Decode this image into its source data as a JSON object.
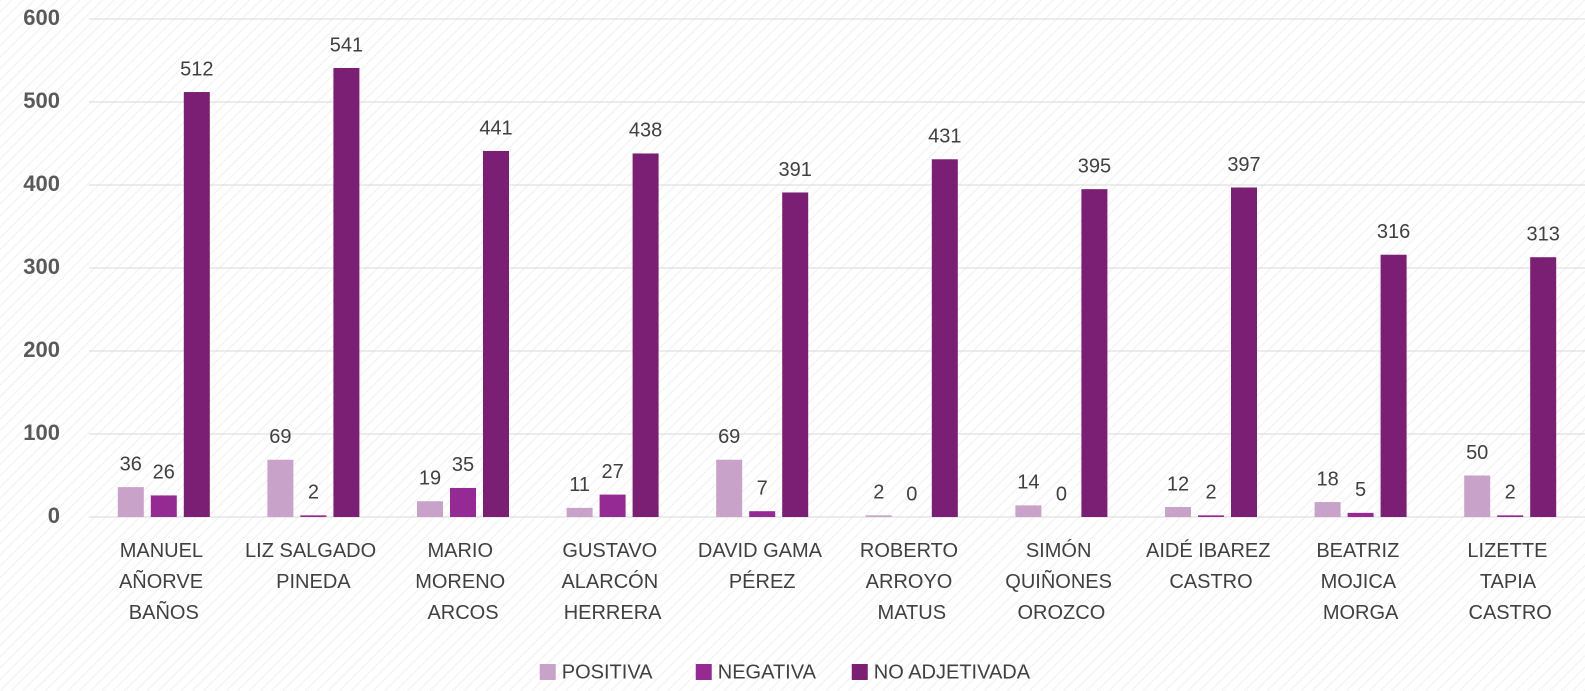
{
  "chart_data": {
    "type": "bar",
    "categories": [
      "MANUEL AÑORVE BAÑOS",
      "LIZ SALGADO PINEDA",
      "MARIO MORENO ARCOS",
      "GUSTAVO ALARCÓN HERRERA",
      "DAVID GAMA PÉREZ",
      "ROBERTO ARROYO MATUS",
      "SIMÓN QUIÑONES OROZCO",
      "AIDÉ IBAREZ CASTRO",
      "BEATRIZ MOJICA MORGA",
      "LIZETTE TAPIA CASTRO"
    ],
    "series": [
      {
        "name": "POSITIVA",
        "color": "#c8a2c8",
        "values": [
          36,
          69,
          19,
          11,
          69,
          2,
          14,
          12,
          18,
          50
        ]
      },
      {
        "name": "NEGATIVA",
        "color": "#952a95",
        "values": [
          26,
          2,
          35,
          27,
          7,
          0,
          0,
          2,
          5,
          2
        ]
      },
      {
        "name": "NO ADJETIVADA",
        "color": "#7a1f73",
        "values": [
          512,
          541,
          441,
          438,
          391,
          431,
          395,
          397,
          316,
          313
        ]
      }
    ],
    "ylim": [
      0,
      600
    ],
    "yticks": [
      0,
      100,
      200,
      300,
      400,
      500,
      600
    ],
    "grid": true,
    "legend": "bottom"
  }
}
